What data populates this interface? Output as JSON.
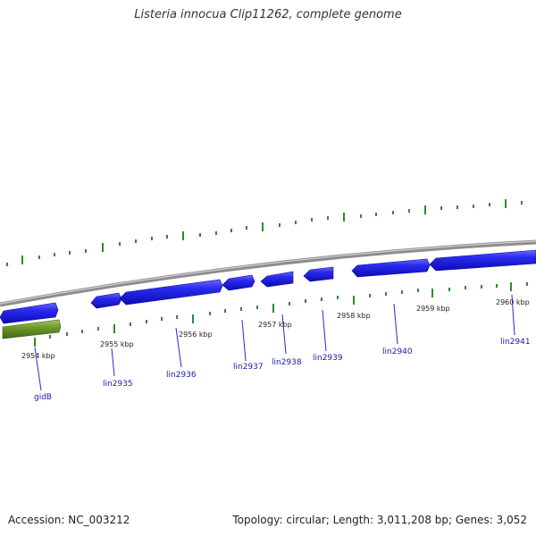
{
  "title": "Listeria innocua Clip11262, complete genome",
  "footer": {
    "accession": "Accession: NC_003212",
    "summary": "Topology: circular; Length: 3,011,208 bp; Genes: 3,052"
  },
  "colors": {
    "forward_gene": "#1f1fe6",
    "reverse_gene": "#5d8a1e",
    "backbone": "#8c8c8c",
    "ticks": "#2d8a2d",
    "label_line": "#2a2acc",
    "label_text": "#1a1aa6"
  },
  "scale_labels": [
    "2954 kbp",
    "2955 kbp",
    "2956 kbp",
    "2957 kbp",
    "2958 kbp",
    "2959 kbp",
    "2960 kbp"
  ],
  "genes": [
    {
      "name": "gidB",
      "strand": "reverse"
    },
    {
      "name": "lin2935",
      "strand": "forward"
    },
    {
      "name": "lin2936",
      "strand": "forward"
    },
    {
      "name": "lin2937",
      "strand": "forward"
    },
    {
      "name": "lin2938",
      "strand": "forward"
    },
    {
      "name": "lin2939",
      "strand": "forward"
    },
    {
      "name": "lin2940",
      "strand": "forward"
    },
    {
      "name": "lin2941",
      "strand": "forward"
    }
  ]
}
